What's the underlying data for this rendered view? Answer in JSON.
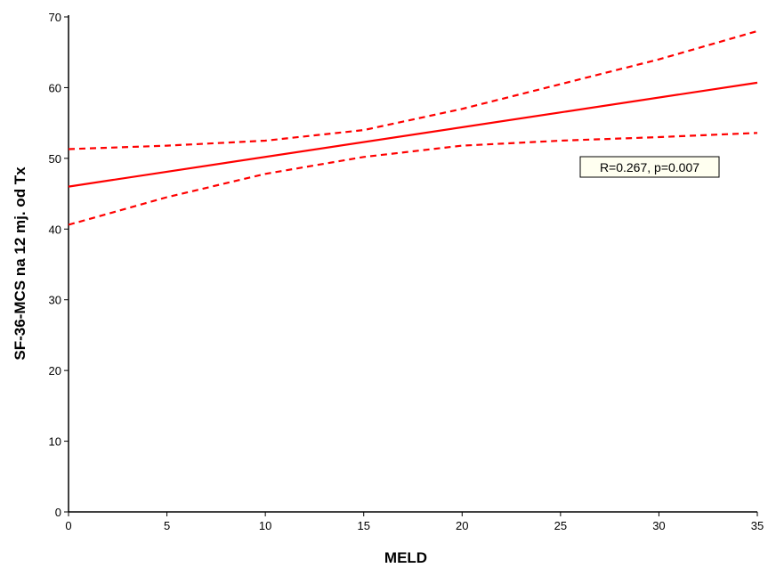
{
  "chart_data": {
    "type": "line",
    "title": "",
    "xlabel": "MELD",
    "ylabel": "SF-36-MCS na 12 mj. od Tx",
    "xlim": [
      0,
      35
    ],
    "ylim": [
      0,
      70
    ],
    "xticks": [
      0,
      5,
      10,
      15,
      20,
      25,
      30,
      35
    ],
    "yticks": [
      0,
      10,
      20,
      30,
      40,
      50,
      60,
      70
    ],
    "grid": false,
    "legend": "none",
    "series": [
      {
        "role": "fit",
        "style": "solid",
        "color": "#ff0000",
        "x": [
          0,
          35
        ],
        "y": [
          46,
          60.7
        ]
      },
      {
        "role": "upper-ci",
        "style": "dashed",
        "color": "#ff0000",
        "x": [
          0,
          5,
          10,
          15,
          20,
          25,
          30,
          35
        ],
        "y": [
          51.3,
          51.8,
          52.5,
          54,
          57,
          60.5,
          64,
          68
        ]
      },
      {
        "role": "lower-ci",
        "style": "dashed",
        "color": "#ff0000",
        "x": [
          0,
          5,
          10,
          15,
          20,
          25,
          30,
          35
        ],
        "y": [
          40.6,
          44.5,
          47.8,
          50.2,
          51.8,
          52.5,
          53,
          53.6
        ]
      }
    ],
    "annotations": [
      {
        "text": "R=0.267, p=0.007"
      }
    ]
  }
}
